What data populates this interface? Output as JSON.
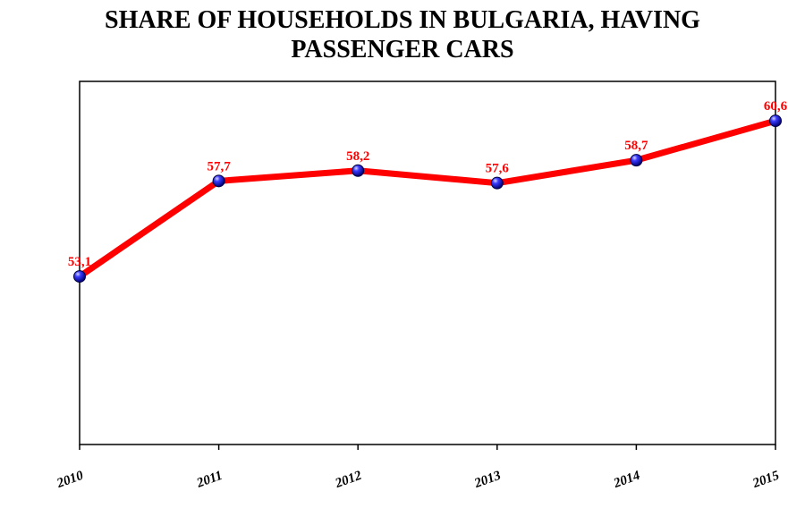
{
  "chart_data": {
    "type": "line",
    "title_lines": [
      "SHARE OF HOUSEHOLDS IN BULGARIA, HAVING",
      "PASSENGER CARS"
    ],
    "categories": [
      "2010",
      "2011",
      "2012",
      "2013",
      "2014",
      "2015"
    ],
    "series": [
      {
        "values": [
          53.1,
          57.7,
          58.2,
          57.6,
          58.7,
          60.6
        ],
        "labels": [
          "53,1",
          "57,7",
          "58,2",
          "57,6",
          "58,7",
          "60,6"
        ],
        "line_color": "#ff0000",
        "marker_color": "#1a1aff"
      }
    ],
    "ylim": [
      45,
      62.5
    ],
    "grid": false,
    "y_tick_labels_shown": false
  }
}
